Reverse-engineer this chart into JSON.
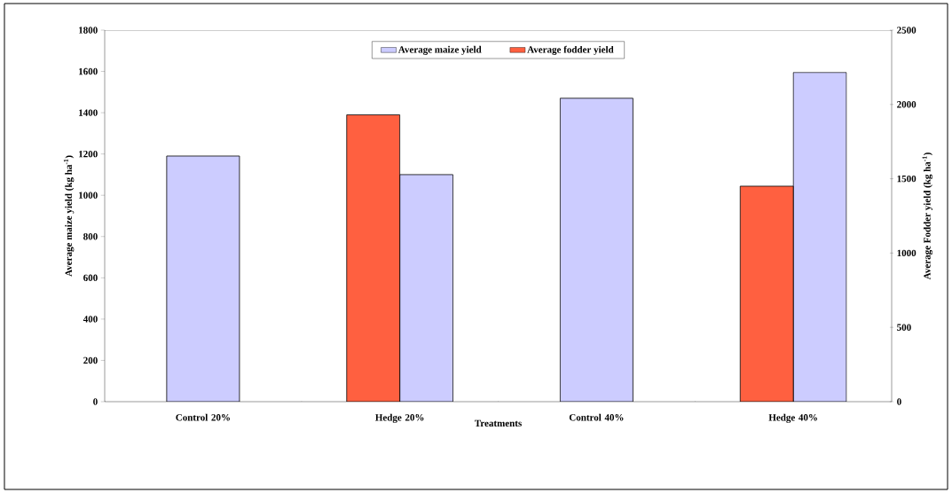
{
  "chart_data": {
    "type": "bar",
    "xlabel": "Treatments",
    "ylabel": "Average maize yield (kg ha$^{-1}$)",
    "y2label": "Average Fodder yield (kg ha$^{-1}$)",
    "categories": [
      "Control 20%",
      "Hedge 20%",
      "Control 40%",
      "Hedge 40%"
    ],
    "series": [
      {
        "name": "Average maize yield",
        "color": "#ccccff",
        "values": [
          1190,
          1100,
          1470,
          1595
        ]
      },
      {
        "name": "Average fodder yield",
        "color": "#ff6040",
        "axis": "y2",
        "values": [
          null,
          1930,
          null,
          1450
        ]
      }
    ],
    "ylim": [
      0,
      1800
    ],
    "yticks": [
      0,
      200,
      400,
      600,
      800,
      1000,
      1200,
      1400,
      1600,
      1800
    ],
    "y2lim": [
      0,
      2500
    ],
    "y2ticks": [
      0,
      500,
      1000,
      1500,
      2000,
      2500
    ],
    "legend": "top"
  }
}
